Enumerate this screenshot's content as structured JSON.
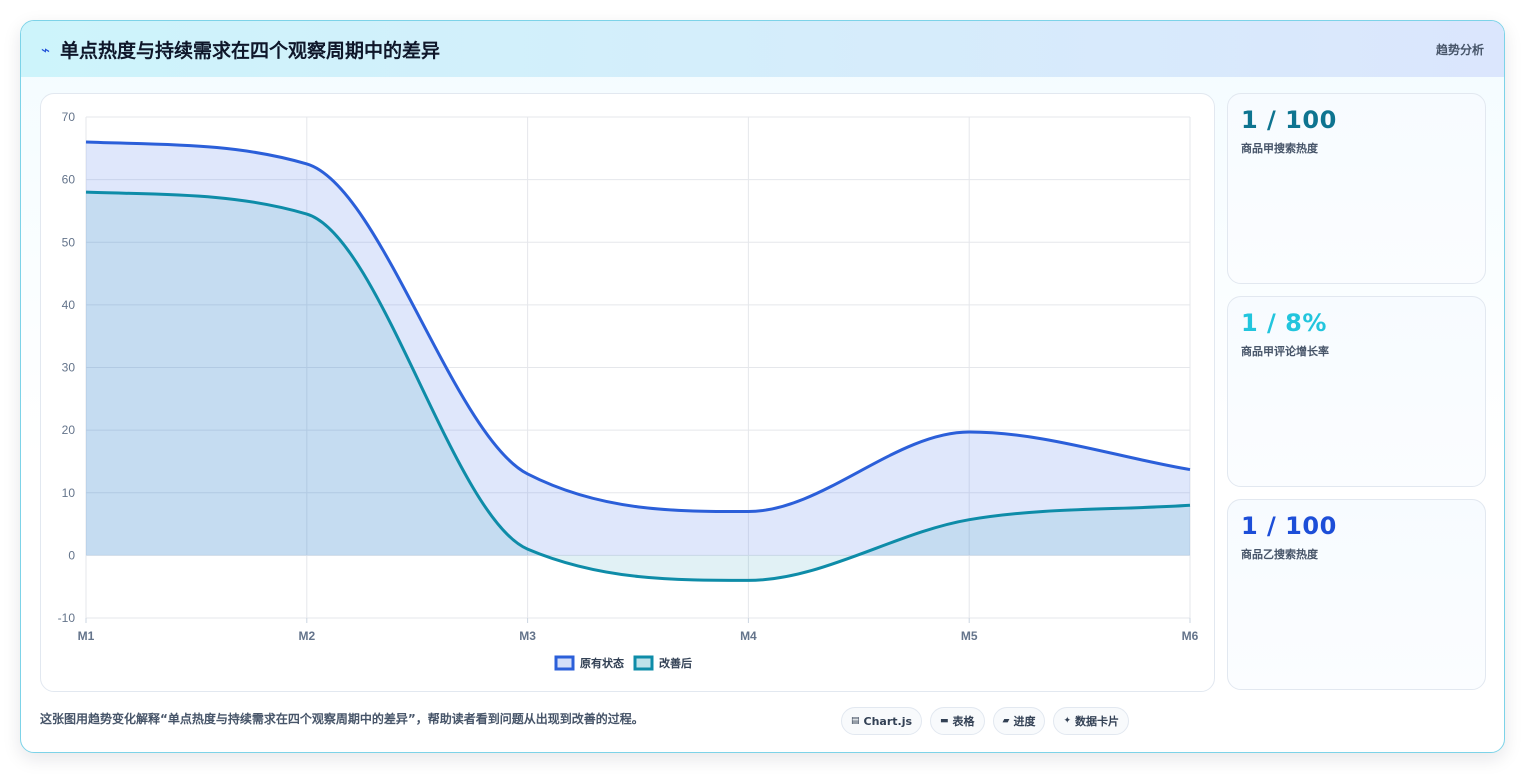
{
  "header": {
    "title": "单点热度与持续需求在四个观察周期中的差异",
    "tag": "趋势分析"
  },
  "kpis": [
    {
      "value": "1 / 100",
      "label": "商品甲搜索热度",
      "color": "#0e7490"
    },
    {
      "value": "1 / 8%",
      "label": "商品甲评论增长率",
      "color": "#22c5dd"
    },
    {
      "value": "1 / 100",
      "label": "商品乙搜索热度",
      "color": "#1d4ed8"
    }
  ],
  "footer": {
    "text": "这张图用趋势变化解释“单点热度与持续需求在四个观察周期中的差异”，帮助读者看到问题从出现到改善的过程。"
  },
  "chips": [
    {
      "icon": "chart-icon",
      "glyph": "▤",
      "label": "Chart.js"
    },
    {
      "icon": "table-icon",
      "glyph": "▬",
      "label": "表格"
    },
    {
      "icon": "progress-icon",
      "glyph": "▰",
      "label": "进度"
    },
    {
      "icon": "sparkle-icon",
      "glyph": "✦",
      "label": "数据卡片"
    }
  ],
  "chart_data": {
    "type": "area",
    "title": "",
    "xlabel": "",
    "ylabel": "",
    "categories": [
      "M1",
      "M2",
      "M3",
      "M4",
      "M5",
      "M6"
    ],
    "ylim": [
      -10,
      70
    ],
    "yticks": [
      -10,
      0,
      10,
      20,
      30,
      40,
      50,
      60,
      70
    ],
    "grid": true,
    "legend_position": "bottom",
    "series": [
      {
        "name": "原有状态",
        "values": [
          66,
          62.5,
          13,
          7,
          19.7,
          13.7
        ],
        "color": "#2b5fd9",
        "fill": "rgba(96,135,235,0.20)"
      },
      {
        "name": "改善后",
        "values": [
          58,
          54.5,
          1,
          -4,
          5.7,
          8
        ],
        "color": "#0e8ca8",
        "fill": "rgba(20,150,180,0.13)"
      }
    ]
  }
}
